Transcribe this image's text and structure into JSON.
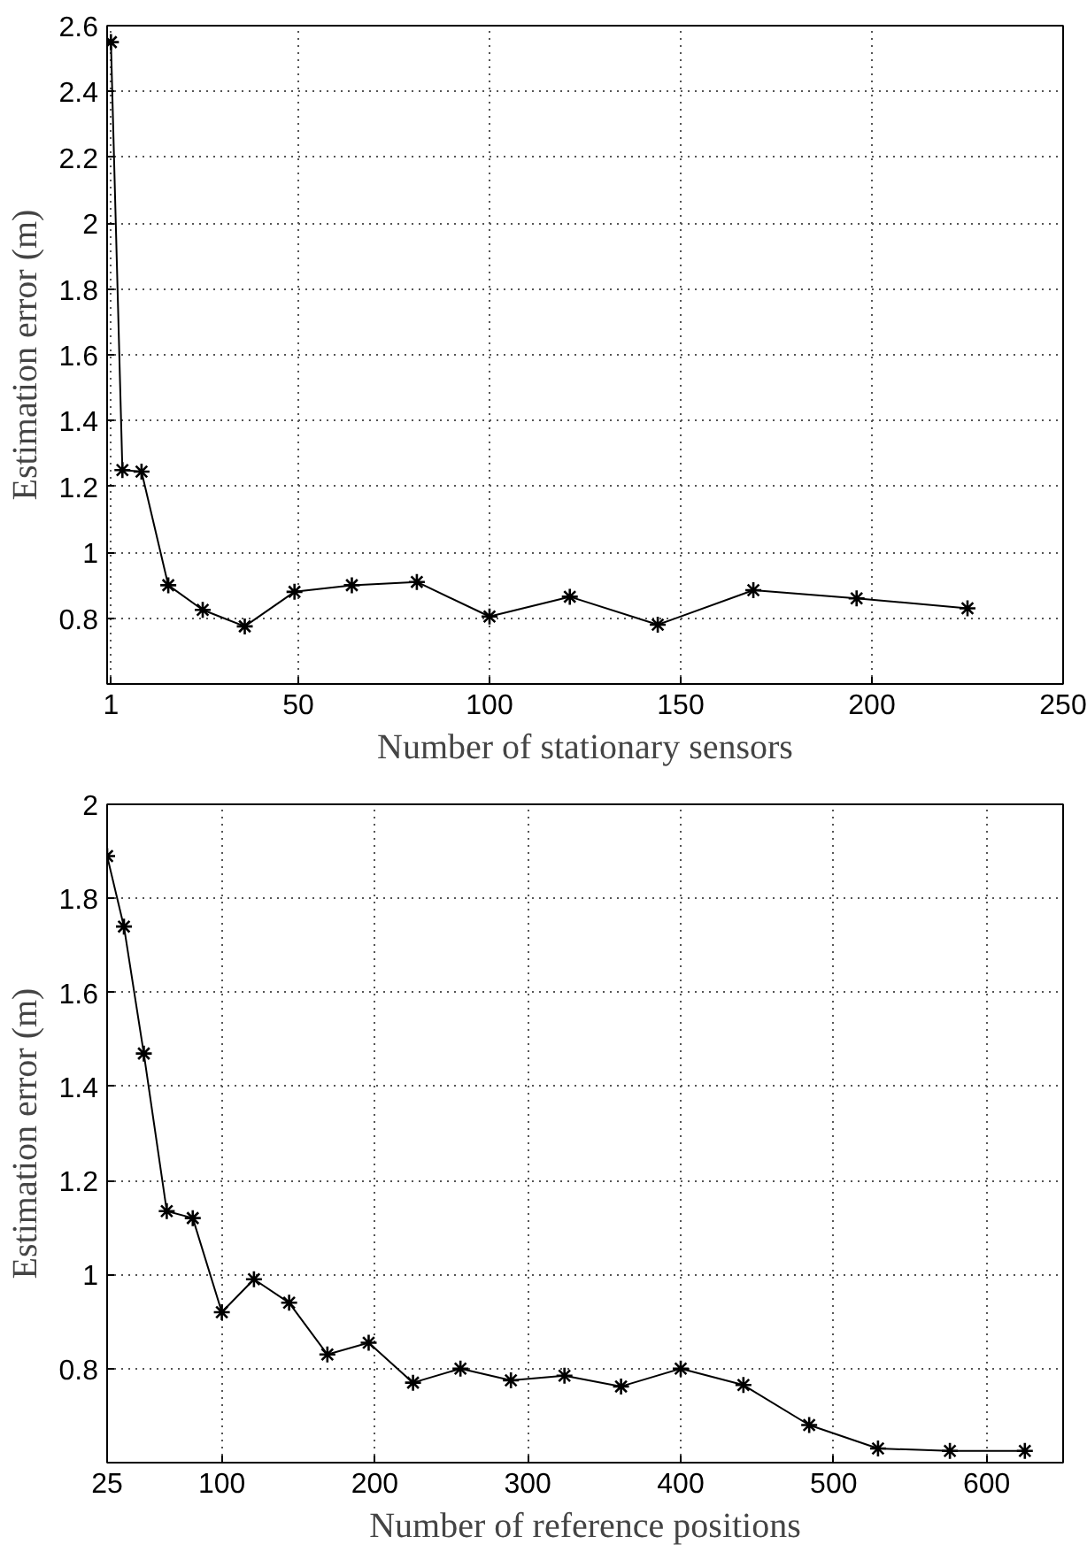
{
  "chart_data": [
    {
      "type": "line",
      "xlabel": "Number of stationary sensors",
      "ylabel": "Estimation error (m)",
      "marker": "cross",
      "grid": true,
      "color": "#000000",
      "x": [
        1,
        4,
        9,
        16,
        25,
        36,
        49,
        64,
        81,
        100,
        121,
        144,
        169,
        196,
        225
      ],
      "values": [
        2.55,
        1.25,
        1.245,
        0.9,
        0.825,
        0.775,
        0.88,
        0.9,
        0.91,
        0.805,
        0.865,
        0.78,
        0.885,
        0.86,
        0.83
      ],
      "xlim": [
        0,
        250
      ],
      "xticks": [
        1,
        50,
        100,
        150,
        200,
        250
      ],
      "ylim": [
        0.6,
        2.6
      ],
      "yticks": [
        0.8,
        1,
        1.2,
        1.4,
        1.6,
        1.8,
        2,
        2.2,
        2.4,
        2.6
      ]
    },
    {
      "type": "line",
      "xlabel": "Number of reference positions",
      "ylabel": "Estimation error (m)",
      "marker": "cross",
      "grid": true,
      "color": "#000000",
      "x": [
        25,
        36,
        49,
        64,
        81,
        100,
        121,
        144,
        169,
        196,
        225,
        256,
        289,
        324,
        361,
        400,
        441,
        484,
        529,
        576,
        625
      ],
      "values": [
        1.89,
        1.74,
        1.47,
        1.135,
        1.12,
        0.92,
        0.99,
        0.94,
        0.83,
        0.855,
        0.77,
        0.8,
        0.775,
        0.785,
        0.762,
        0.8,
        0.765,
        0.68,
        0.63,
        0.625,
        0.625
      ],
      "xlim": [
        25,
        650
      ],
      "xticks": [
        25,
        100,
        200,
        300,
        400,
        500,
        600
      ],
      "ylim": [
        0.6,
        2
      ],
      "yticks": [
        0.8,
        1,
        1.2,
        1.4,
        1.6,
        1.8,
        2
      ]
    }
  ]
}
